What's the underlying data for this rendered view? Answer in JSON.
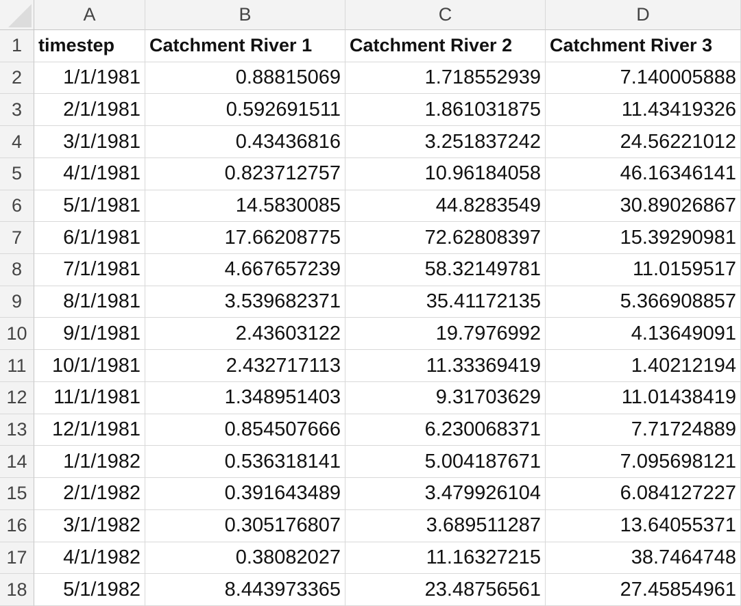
{
  "columns": [
    "A",
    "B",
    "C",
    "D"
  ],
  "headers": [
    "timestep",
    "Catchment River 1",
    "Catchment River 2",
    "Catchment River 3"
  ],
  "rows": [
    [
      "1/1/1981",
      "0.88815069",
      "1.718552939",
      "7.140005888"
    ],
    [
      "2/1/1981",
      "0.592691511",
      "1.861031875",
      "11.43419326"
    ],
    [
      "3/1/1981",
      "0.43436816",
      "3.251837242",
      "24.56221012"
    ],
    [
      "4/1/1981",
      "0.823712757",
      "10.96184058",
      "46.16346141"
    ],
    [
      "5/1/1981",
      "14.5830085",
      "44.8283549",
      "30.89026867"
    ],
    [
      "6/1/1981",
      "17.66208775",
      "72.62808397",
      "15.39290981"
    ],
    [
      "7/1/1981",
      "4.667657239",
      "58.32149781",
      "11.0159517"
    ],
    [
      "8/1/1981",
      "3.539682371",
      "35.41172135",
      "5.366908857"
    ],
    [
      "9/1/1981",
      "2.43603122",
      "19.7976992",
      "4.13649091"
    ],
    [
      "10/1/1981",
      "2.432717113",
      "11.33369419",
      "1.40212194"
    ],
    [
      "11/1/1981",
      "1.348951403",
      "9.31703629",
      "11.01438419"
    ],
    [
      "12/1/1981",
      "0.854507666",
      "6.230068371",
      "7.71724889"
    ],
    [
      "1/1/1982",
      "0.536318141",
      "5.004187671",
      "7.095698121"
    ],
    [
      "2/1/1982",
      "0.391643489",
      "3.479926104",
      "6.084127227"
    ],
    [
      "3/1/1982",
      "0.305176807",
      "3.689511287",
      "13.64055371"
    ],
    [
      "4/1/1982",
      "0.38082027",
      "11.16327215",
      "38.7464748"
    ],
    [
      "5/1/1982",
      "8.443973365",
      "23.48756561",
      "27.45854961"
    ]
  ],
  "row_numbers": [
    "1",
    "2",
    "3",
    "4",
    "5",
    "6",
    "7",
    "8",
    "9",
    "10",
    "11",
    "12",
    "13",
    "14",
    "15",
    "16",
    "17",
    "18"
  ],
  "colors": {
    "header_bg": "#f3f3f3",
    "gridline": "#d8d8d8",
    "header_text": "#444444",
    "cell_text": "#111111"
  }
}
